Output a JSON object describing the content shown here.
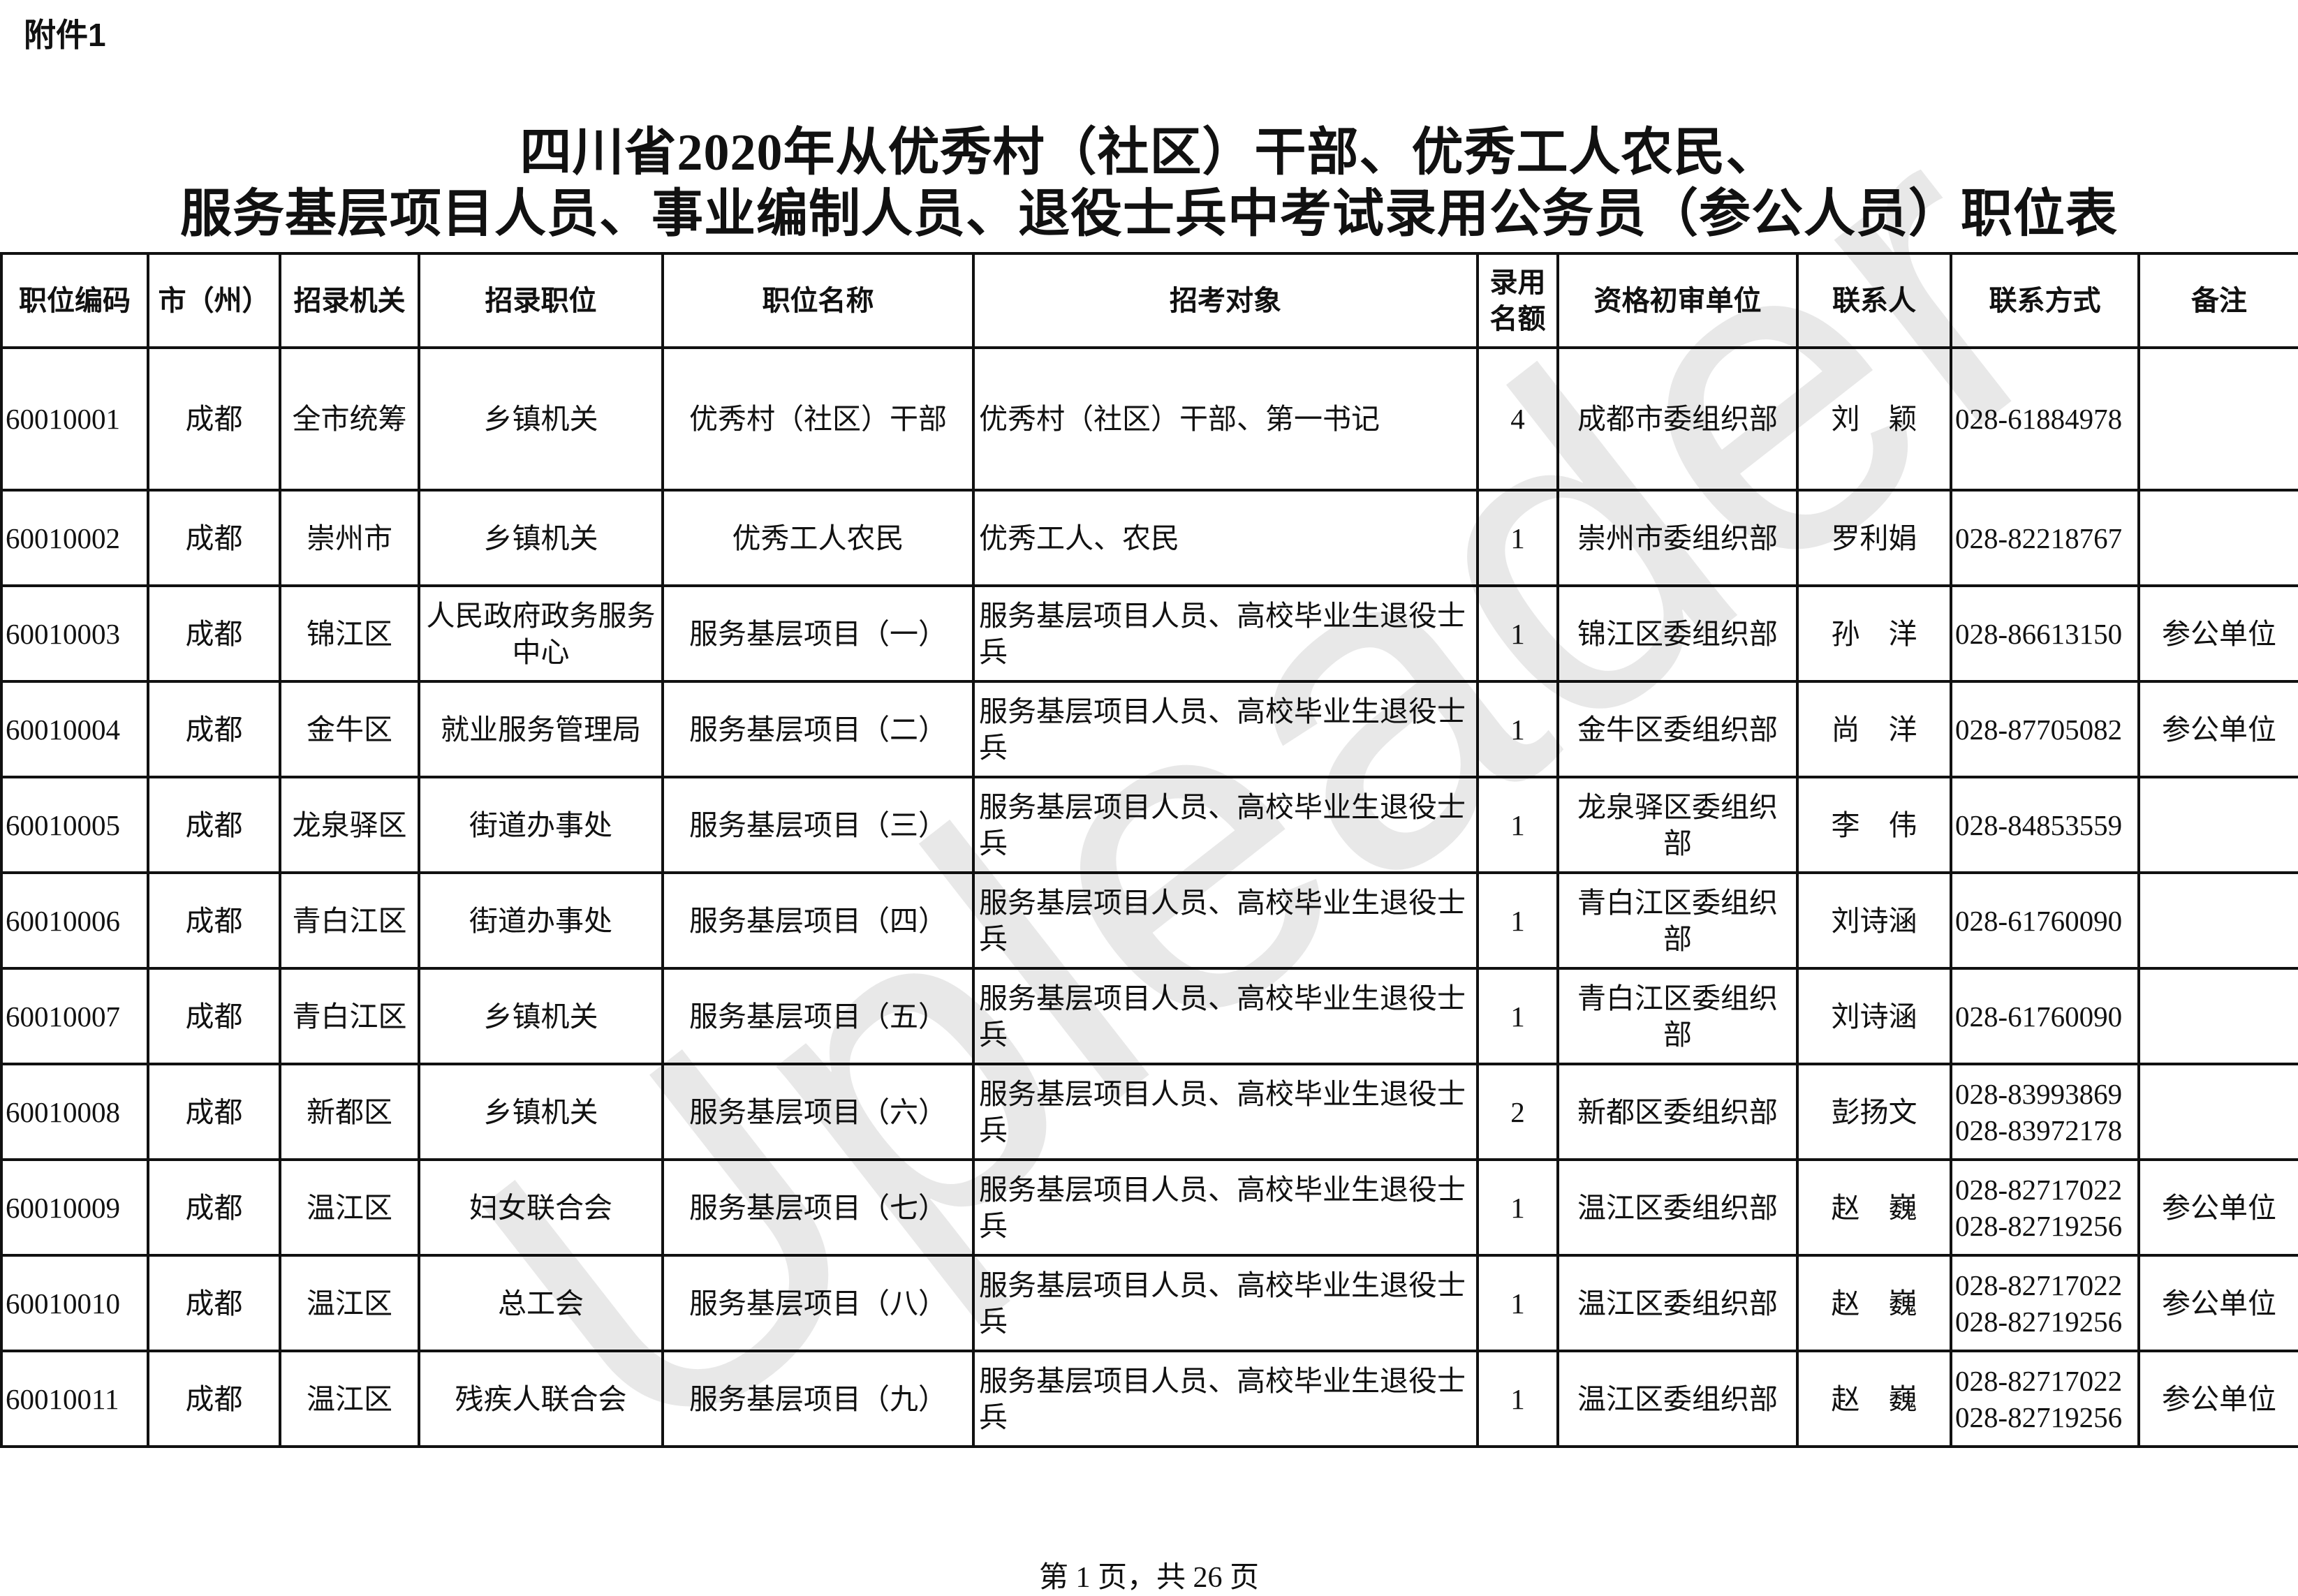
{
  "attachment_label": "附件1",
  "title_line1": "四川省2020年从优秀村（社区）干部、优秀工人农民、",
  "title_line2": "服务基层项目人员、事业编制人员、退役士兵中考试录用公务员（参公人员）职位表",
  "watermark": "Upleader",
  "table": {
    "headers": [
      "职位编码",
      "市（州）",
      "招录机关",
      "招录职位",
      "职位名称",
      "招考对象",
      "录用名额",
      "资格初审单位",
      "联系人",
      "联系方式",
      "备注"
    ],
    "rows": [
      [
        "60010001",
        "成都",
        "全市统筹",
        "乡镇机关",
        "优秀村（社区）干部",
        "优秀村（社区）干部、第一书记",
        "4",
        "成都市委组织部",
        "刘　颖",
        "028-61884978",
        ""
      ],
      [
        "60010002",
        "成都",
        "崇州市",
        "乡镇机关",
        "优秀工人农民",
        "优秀工人、农民",
        "1",
        "崇州市委组织部",
        "罗利娟",
        "028-82218767",
        ""
      ],
      [
        "60010003",
        "成都",
        "锦江区",
        "人民政府政务服务中心",
        "服务基层项目（一）",
        "服务基层项目人员、高校毕业生退役士兵",
        "1",
        "锦江区委组织部",
        "孙　洋",
        "028-86613150",
        "参公单位"
      ],
      [
        "60010004",
        "成都",
        "金牛区",
        "就业服务管理局",
        "服务基层项目（二）",
        "服务基层项目人员、高校毕业生退役士兵",
        "1",
        "金牛区委组织部",
        "尚　洋",
        "028-87705082",
        "参公单位"
      ],
      [
        "60010005",
        "成都",
        "龙泉驿区",
        "街道办事处",
        "服务基层项目（三）",
        "服务基层项目人员、高校毕业生退役士兵",
        "1",
        "龙泉驿区委组织部",
        "李　伟",
        "028-84853559",
        ""
      ],
      [
        "60010006",
        "成都",
        "青白江区",
        "街道办事处",
        "服务基层项目（四）",
        "服务基层项目人员、高校毕业生退役士兵",
        "1",
        "青白江区委组织部",
        "刘诗涵",
        "028-61760090",
        ""
      ],
      [
        "60010007",
        "成都",
        "青白江区",
        "乡镇机关",
        "服务基层项目（五）",
        "服务基层项目人员、高校毕业生退役士兵",
        "1",
        "青白江区委组织部",
        "刘诗涵",
        "028-61760090",
        ""
      ],
      [
        "60010008",
        "成都",
        "新都区",
        "乡镇机关",
        "服务基层项目（六）",
        "服务基层项目人员、高校毕业生退役士兵",
        "2",
        "新都区委组织部",
        "彭扬文",
        "028-83993869 028-83972178",
        ""
      ],
      [
        "60010009",
        "成都",
        "温江区",
        "妇女联合会",
        "服务基层项目（七）",
        "服务基层项目人员、高校毕业生退役士兵",
        "1",
        "温江区委组织部",
        "赵　巍",
        "028-82717022 028-82719256",
        "参公单位"
      ],
      [
        "60010010",
        "成都",
        "温江区",
        "总工会",
        "服务基层项目（八）",
        "服务基层项目人员、高校毕业生退役士兵",
        "1",
        "温江区委组织部",
        "赵　巍",
        "028-82717022 028-82719256",
        "参公单位"
      ],
      [
        "60010011",
        "成都",
        "温江区",
        "残疾人联合会",
        "服务基层项目（九）",
        "服务基层项目人员、高校毕业生退役士兵",
        "1",
        "温江区委组织部",
        "赵　巍",
        "028-82717022 028-82719256",
        "参公单位"
      ]
    ]
  },
  "footer": "第 1 页，共 26 页"
}
